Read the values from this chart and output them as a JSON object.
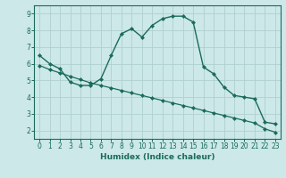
{
  "xlabel": "Humidex (Indice chaleur)",
  "background_color": "#cce8e8",
  "line_color": "#1a6b5a",
  "grid_color": "#b0d0d0",
  "xlim": [
    -0.5,
    23.5
  ],
  "ylim": [
    1.5,
    9.5
  ],
  "xticks": [
    0,
    1,
    2,
    3,
    4,
    5,
    6,
    7,
    8,
    9,
    10,
    11,
    12,
    13,
    14,
    15,
    16,
    17,
    18,
    19,
    20,
    21,
    22,
    23
  ],
  "yticks": [
    2,
    3,
    4,
    5,
    6,
    7,
    8,
    9
  ],
  "line1_x": [
    0,
    1,
    2,
    3,
    4,
    5,
    6,
    7,
    8,
    9,
    10,
    11,
    12,
    13,
    14,
    15,
    16,
    17,
    18,
    19,
    20,
    21,
    22,
    23
  ],
  "line1_y": [
    6.5,
    6.0,
    5.7,
    4.9,
    4.7,
    4.7,
    5.1,
    6.5,
    7.8,
    8.1,
    7.6,
    8.3,
    8.7,
    8.85,
    8.85,
    8.5,
    5.8,
    5.4,
    4.6,
    4.1,
    4.0,
    3.9,
    2.5,
    2.4
  ],
  "line2_x": [
    0,
    1,
    2,
    3,
    4,
    5,
    6,
    7,
    8,
    9,
    10,
    11,
    12,
    13,
    14,
    15,
    16,
    17,
    18,
    19,
    20,
    21,
    22,
    23
  ],
  "line2_y": [
    5.9,
    5.65,
    5.45,
    5.25,
    5.05,
    4.85,
    4.7,
    4.55,
    4.4,
    4.25,
    4.1,
    3.95,
    3.8,
    3.65,
    3.5,
    3.35,
    3.2,
    3.05,
    2.9,
    2.75,
    2.6,
    2.45,
    2.1,
    1.9
  ]
}
